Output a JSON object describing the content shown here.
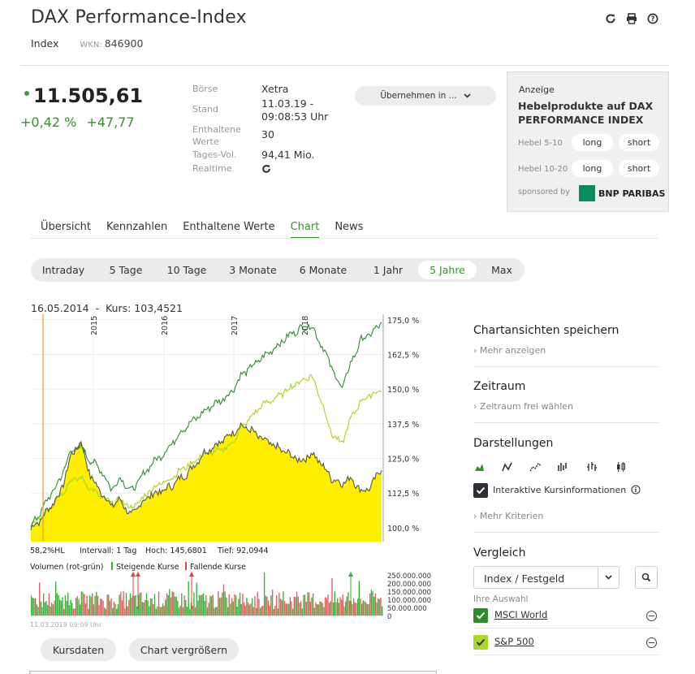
{
  "header": {
    "title": "DAX Performance-Index",
    "type": "Index",
    "wkn_label": "WKN:",
    "wkn": "846900"
  },
  "quote": {
    "price": "11.505,61",
    "change_pct": "+0,42 %",
    "change_abs": "+47,77"
  },
  "info": {
    "rows": [
      {
        "label": "Börse",
        "value": "Xetra"
      },
      {
        "label": "Stand",
        "value": "11.03.19 -",
        "value2": "09:08:53 Uhr"
      },
      {
        "label": "Enthaltene",
        "label2": "Werte",
        "value": "30"
      },
      {
        "label": "Tages-Vol.",
        "value": "94,41 Mio."
      },
      {
        "label": "Realtime",
        "value": ""
      }
    ],
    "button": "Übernehmen in ..."
  },
  "ad": {
    "label": "Anzeige",
    "headline": "Hebelprodukte auf DAX PERFORMANCE INDEX",
    "lever1": "Hebel 5-10",
    "lever2": "Hebel 10-20",
    "long": "long",
    "short": "short",
    "sponsored": "sponsored by",
    "bank": "BNP PARIBAS"
  },
  "tabs": [
    "Übersicht",
    "Kennzahlen",
    "Enthaltene Werte",
    "Chart",
    "News"
  ],
  "ranges": [
    "Intraday",
    "5 Tage",
    "10 Tage",
    "3 Monate",
    "6 Monate",
    "1 Jahr",
    "5 Jahre",
    "Max"
  ],
  "chart": {
    "cursor_info": "16.05.2014  -  Kurs: 103,4521",
    "y_ticks": [
      "175,0 %",
      "162,5 %",
      "150,0 %",
      "137,5 %",
      "125,0 %",
      "112,5 %",
      "100,0 %"
    ],
    "years": [
      "2015",
      "2016",
      "2017",
      "2018"
    ],
    "stats": {
      "hl": "58,2%HL",
      "interval": "Intervall: 1 Tag",
      "high": "Hoch: 145,6801",
      "low": "Tief: 92,0944"
    },
    "volume_label": "Volumen (rot-grün)",
    "rising": "Steigende Kurse",
    "falling": "Fallende Kurse",
    "vol_ticks": [
      "250.000.000",
      "200.000.000",
      "150.000.000",
      "100.000.000",
      "50.000.000",
      "0"
    ],
    "date_stamp": "11.03.2019 09:09 Uhr"
  },
  "chart_data": {
    "type": "line",
    "ylim": [
      95,
      177
    ],
    "y_unit": "%",
    "series": [
      {
        "name": "DAX Performance-Index",
        "color": "#555555",
        "fill": "#ffee00",
        "values": [
          100,
          103,
          108,
          113,
          126,
          131,
          118,
          113,
          108,
          110,
          104,
          109,
          112,
          113,
          115,
          118,
          121,
          126,
          129,
          131,
          134,
          137,
          135,
          132,
          130,
          128,
          126,
          124,
          127,
          123,
          118,
          116,
          118,
          113,
          115,
          122
        ]
      },
      {
        "name": "MSCI World",
        "color": "#2e8b2e",
        "values": [
          100,
          106,
          112,
          118,
          128,
          129,
          124,
          121,
          114,
          118,
          113,
          118,
          123,
          126,
          130,
          135,
          138,
          141,
          144,
          146,
          149,
          155,
          158,
          161,
          164,
          167,
          170,
          172,
          173,
          166,
          158,
          150,
          160,
          168,
          170,
          174
        ]
      },
      {
        "name": "S&P 500",
        "color": "#a8d82a",
        "values": [
          100,
          104,
          108,
          112,
          117,
          118,
          114,
          111,
          109,
          110,
          107,
          110,
          114,
          116,
          118,
          121,
          123,
          126,
          127,
          128,
          130,
          136,
          140,
          144,
          146,
          148,
          151,
          153,
          155,
          146,
          134,
          130,
          140,
          146,
          148,
          150
        ]
      }
    ]
  },
  "side": {
    "save_title": "Chartansichten speichern",
    "save_link": "Mehr anzeigen",
    "range_title": "Zeitraum",
    "range_link": "Zeitraum frei wählen",
    "display_title": "Darstellungen",
    "interactive": "Interaktive Kursinformationen",
    "more_criteria": "Mehr Kriterien",
    "compare_title": "Vergleich",
    "select": "Index / Festgeld",
    "your_choice": "Ihre Auswahl",
    "compare": [
      {
        "name": "MSCI World",
        "color": "#2e8b2e"
      },
      {
        "name": "S&P 500",
        "color": "#a8d82a"
      }
    ]
  },
  "buttons": {
    "kursdaten": "Kursdaten",
    "enlarge": "Chart vergrößern"
  }
}
